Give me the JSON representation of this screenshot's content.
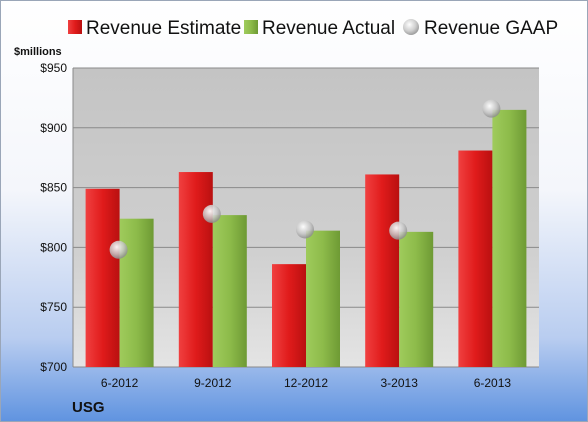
{
  "chart_data": {
    "type": "bar",
    "title": "",
    "company": "USG",
    "ylabel": "$millions",
    "categories": [
      "6-2012",
      "9-2012",
      "12-2012",
      "3-2013",
      "6-2013"
    ],
    "series": [
      {
        "name": "Revenue Estimate",
        "kind": "bar",
        "color": "#e01b1b",
        "values": [
          849,
          863,
          786,
          861,
          881
        ]
      },
      {
        "name": "Revenue Actual",
        "kind": "bar",
        "color": "#8dbb4a",
        "values": [
          824,
          827,
          814,
          813,
          915
        ]
      },
      {
        "name": "Revenue GAAP",
        "kind": "marker",
        "color": "#c8c8c8",
        "values": [
          798,
          828,
          815,
          814,
          916
        ]
      }
    ],
    "ylim": [
      700,
      950
    ],
    "yticks": [
      700,
      750,
      800,
      850,
      900,
      950
    ],
    "ytick_labels": [
      "$700",
      "$750",
      "$800",
      "$850",
      "$900",
      "$950"
    ],
    "grid": true,
    "legend_position": "top"
  }
}
